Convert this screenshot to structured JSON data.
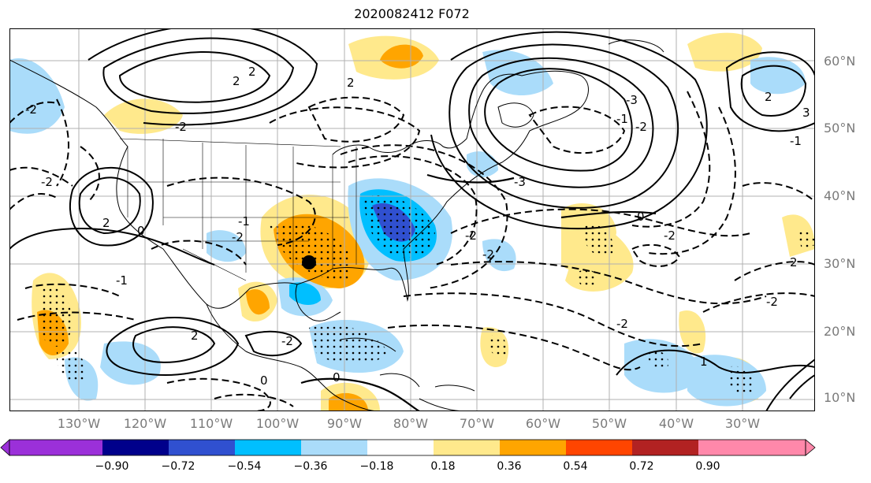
{
  "title": "2020082412 F072",
  "latitude_labels": [
    "60°N",
    "50°N",
    "40°N",
    "30°N",
    "20°N",
    "10°N"
  ],
  "longitude_labels": [
    "130°W",
    "120°W",
    "110°W",
    "100°W",
    "90°W",
    "80°W",
    "70°W",
    "60°W",
    "50°W",
    "40°W",
    "30°W"
  ],
  "colorbar": {
    "colors": [
      "#9b30d9",
      "#00008b",
      "#3050d0",
      "#00bfff",
      "#aadcfa",
      "#ffffff",
      "#ffe98c",
      "#ffa500",
      "#ff4500",
      "#b22222",
      "#ff88aa"
    ],
    "tick_labels": [
      "−0.90",
      "−0.72",
      "−0.54",
      "−0.36",
      "−0.18",
      "0.18",
      "0.36",
      "0.54",
      "0.72",
      "0.90"
    ]
  },
  "contour_labels": [
    "2",
    "2",
    "2",
    "2",
    "0",
    "-2",
    "-1",
    "-2",
    "-2",
    "2",
    "0",
    "-2",
    "-3",
    "-3",
    "-2",
    "-1",
    "0",
    "1",
    "2",
    "3",
    "-2",
    "-1",
    "2",
    "-2",
    "-2",
    "-2",
    "-1",
    "-2",
    "-2",
    "0"
  ],
  "marker": {
    "lon": "95°W",
    "lat": "30°N"
  }
}
